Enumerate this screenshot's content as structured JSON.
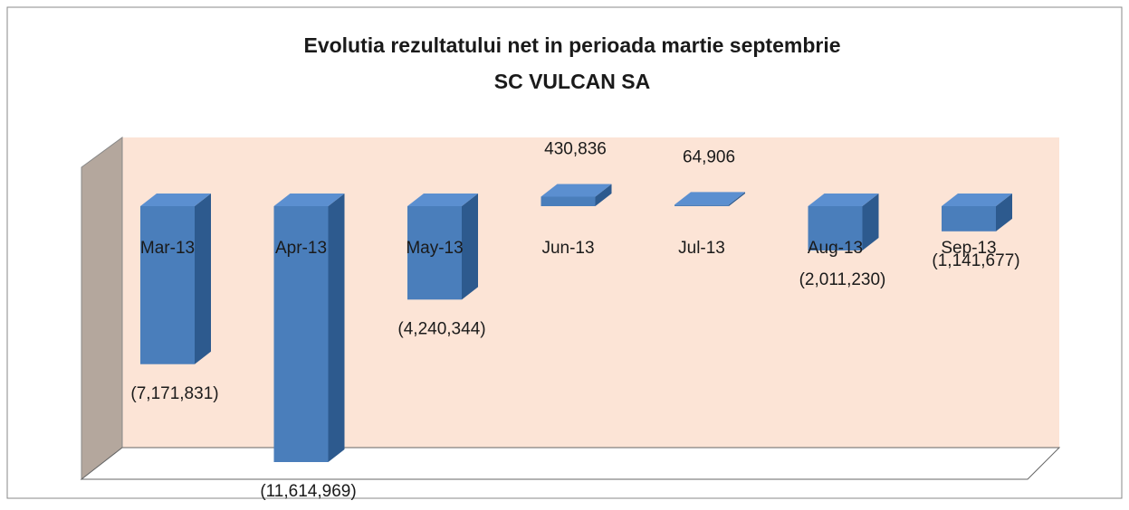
{
  "chart_data": {
    "type": "bar3d",
    "title": "Evolutia rezultatului net in perioada martie septembrie",
    "subtitle": "SC VULCAN SA",
    "categories": [
      "Mar-13",
      "Apr-13",
      "May-13",
      "Jun-13",
      "Jul-13",
      "Aug-13",
      "Sep-13"
    ],
    "values": [
      -7171831,
      -11614969,
      -4240344,
      430836,
      64906,
      -2011230,
      -1141677
    ],
    "value_labels": [
      "(7,171,831)",
      "(11,614,969)",
      "(4,240,344)",
      "430,836",
      "64,906",
      "(2,011,230)",
      "(1,141,677)"
    ],
    "color": "#4a7ebb"
  }
}
